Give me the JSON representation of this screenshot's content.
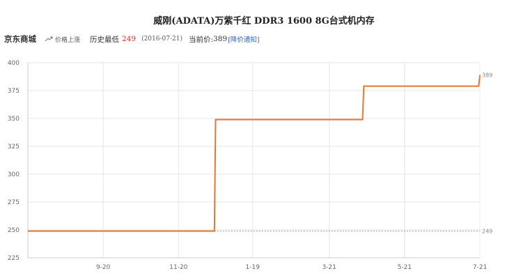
{
  "title": "威刚(ADATA)万紫千红 DDR3 1600 8G台式机内存",
  "info": {
    "store": "京东商城",
    "trend_label": "价格上涨",
    "lowest_label": "历史最低",
    "lowest_price": "249",
    "lowest_date": "(2016-07-21)",
    "current_label": "当前价:",
    "current_price": "389",
    "notify_label": "[降价通知]"
  },
  "chart_data": {
    "type": "line",
    "title": "威刚(ADATA)万紫千红 DDR3 1600 8G台式机内存",
    "xlabel": "",
    "ylabel": "",
    "ylim": [
      225,
      400
    ],
    "yticks": [
      225,
      250,
      275,
      300,
      325,
      350,
      375,
      400
    ],
    "x_tick_labels": [
      "9-20",
      "11-20",
      "1-19",
      "3-21",
      "5-21",
      "7-21"
    ],
    "grid": true,
    "line_color": "#e8762c",
    "series": [
      {
        "step": true,
        "points": [
          {
            "x": "7-21",
            "y": 249
          },
          {
            "x": "12-19",
            "y": 249
          },
          {
            "x": "12-20",
            "y": 349
          },
          {
            "x": "4-17",
            "y": 349
          },
          {
            "x": "4-18",
            "y": 379
          },
          {
            "x": "7-20",
            "y": 379
          },
          {
            "x": "7-21",
            "y": 389
          }
        ]
      }
    ],
    "reference_line": {
      "value": 249,
      "label": "249"
    },
    "end_label": "389"
  }
}
